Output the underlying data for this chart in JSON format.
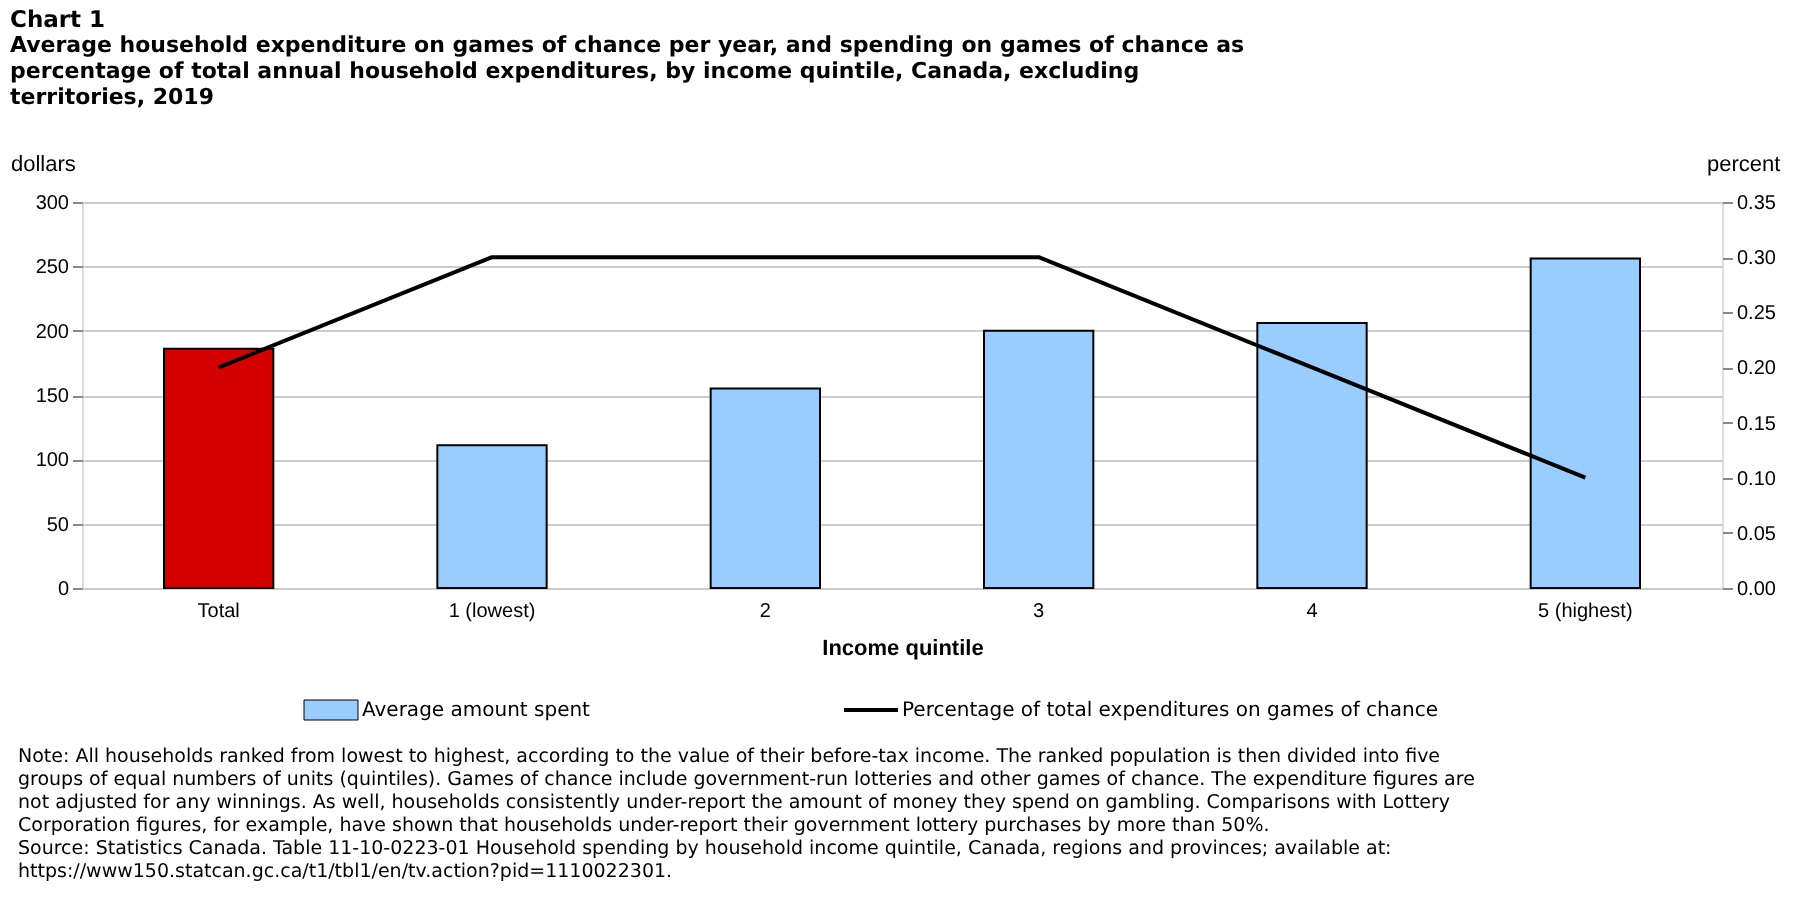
{
  "chart_data": {
    "type": "bar",
    "title": "Chart 1",
    "subtitle": "Average household expenditure on games of chance per year, and spending on games of chance as percentage of total annual household expenditures, by income quintile, Canada, excluding territories, 2019",
    "categories": [
      "Total",
      "1 (lowest)",
      "2",
      "3",
      "4",
      "5 (highest)"
    ],
    "series": [
      {
        "name": "Average amount spent",
        "color": "#99ccff",
        "colors": [
          "#d40000",
          "#99ccff",
          "#99ccff",
          "#99ccff",
          "#99ccff",
          "#99ccff"
        ],
        "values": [
          186,
          111,
          155,
          200,
          206,
          256
        ]
      },
      {
        "name": "Percentage of total expenditures on games of chance",
        "type": "line",
        "axis": "y2",
        "color": "#000000",
        "values": [
          0.2,
          0.3,
          0.3,
          0.3,
          0.2,
          0.1
        ]
      }
    ],
    "xlabel": "Income quintile",
    "ylabel": "dollars",
    "y2label": "percent",
    "ylim": [
      0,
      300
    ],
    "yticks": [
      0,
      50,
      100,
      150,
      200,
      250,
      300
    ],
    "y2lim": [
      0,
      0.35
    ],
    "y2ticks": [
      {
        "value": 0,
        "label": "0.00"
      },
      {
        "value": 0.05,
        "label": "0.05"
      },
      {
        "value": 0.1,
        "label": "0.10"
      },
      {
        "value": 0.15,
        "label": "0.15"
      },
      {
        "value": 0.2,
        "label": "0.20"
      },
      {
        "value": 0.25,
        "label": "0.25"
      },
      {
        "value": 0.3,
        "label": "0.30"
      },
      {
        "value": 0.35,
        "label": "0.35"
      }
    ],
    "grid": "y",
    "legend": "bottom",
    "marker": "none",
    "line_style": "solid",
    "annotations": [
      "Note: All households ranked from lowest to highest, according to the value of their before-tax income. The ranked population is then divided into five groups of equal numbers of units (quintiles). Games of chance include government-run lotteries and other games of chance. The expenditure figures are not adjusted for any winnings. As well, households consistently under-report the amount of money they spend on gambling. Comparisons with Lottery Corporation figures, for example, have shown that households under-report their government lottery purchases by more than 50%.",
      "Source: Statistics Canada. Table 11-10-0223-01 Household spending by household income quintile, Canada, regions and provinces; available at: https://www150.statcan.gc.ca/t1/tbl1/en/tv.action?pid=1110022301."
    ]
  }
}
